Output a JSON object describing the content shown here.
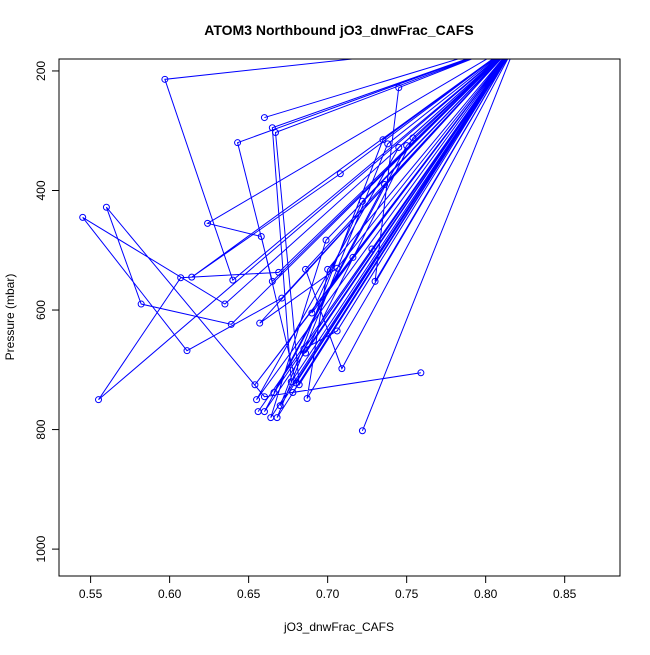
{
  "chart_data": {
    "type": "line",
    "title": "ATOM3 Northbound jO3_dnwFrac_CAFS",
    "xlabel": "jO3_dnwFrac_CAFS",
    "ylabel": "Pressure (mbar)",
    "xlim": [
      0.53,
      0.885
    ],
    "ylim": [
      1045,
      180
    ],
    "y_reversed": true,
    "x_ticks": [
      0.55,
      0.6,
      0.65,
      0.7,
      0.75,
      0.8,
      0.85
    ],
    "x_tick_labels": [
      "0.55",
      "0.60",
      "0.65",
      "0.70",
      "0.75",
      "0.80",
      "0.85"
    ],
    "y_ticks": [
      200,
      400,
      600,
      800,
      1000
    ],
    "y_tick_labels": [
      "200",
      "400",
      "600",
      "800",
      "1000"
    ],
    "grid": false,
    "line_color": "#0000ff",
    "marker": "open-circle",
    "series": [
      {
        "points": [
          [
            0.82,
            150
          ],
          [
            0.597,
            214
          ],
          [
            0.64,
            550
          ],
          [
            0.82,
            150
          ],
          [
            0.66,
            278
          ],
          [
            0.82,
            150
          ],
          [
            0.643,
            320
          ],
          [
            0.665,
            552
          ],
          [
            0.82,
            150
          ],
          [
            0.665,
            295
          ],
          [
            0.677,
            720
          ],
          [
            0.82,
            150
          ],
          [
            0.667,
            303
          ],
          [
            0.682,
            725
          ],
          [
            0.82,
            150
          ],
          [
            0.745,
            228
          ],
          [
            0.73,
            552
          ],
          [
            0.82,
            150
          ],
          [
            0.754,
            312
          ],
          [
            0.686,
            672
          ],
          [
            0.82,
            150
          ],
          [
            0.735,
            315
          ],
          [
            0.67,
            760
          ],
          [
            0.82,
            150
          ],
          [
            0.738,
            322
          ],
          [
            0.668,
            780
          ],
          [
            0.82,
            150
          ],
          [
            0.75,
            325
          ],
          [
            0.66,
            770
          ],
          [
            0.82,
            150
          ],
          [
            0.745,
            328
          ],
          [
            0.655,
            750
          ],
          [
            0.82,
            150
          ],
          [
            0.736,
            390
          ],
          [
            0.666,
            738
          ],
          [
            0.82,
            150
          ],
          [
            0.708,
            372
          ],
          [
            0.614,
            545
          ],
          [
            0.82,
            150
          ],
          [
            0.624,
            455
          ],
          [
            0.658,
            477
          ],
          [
            0.68,
            722
          ],
          [
            0.82,
            150
          ],
          [
            0.722,
            418
          ],
          [
            0.69,
            605
          ],
          [
            0.82,
            150
          ],
          [
            0.699,
            483
          ],
          [
            0.664,
            780
          ],
          [
            0.82,
            150
          ],
          [
            0.716,
            512
          ],
          [
            0.654,
            725
          ],
          [
            0.82,
            150
          ],
          [
            0.728,
            498
          ],
          [
            0.656,
            770
          ],
          [
            0.82,
            150
          ],
          [
            0.686,
            532
          ],
          [
            0.709,
            698
          ],
          [
            0.82,
            150
          ],
          [
            0.706,
            530
          ],
          [
            0.657,
            622
          ],
          [
            0.82,
            150
          ],
          [
            0.7,
            532
          ],
          [
            0.687,
            748
          ],
          [
            0.82,
            150
          ],
          [
            0.722,
            802
          ],
          [
            0.82,
            150
          ],
          [
            0.706,
            635
          ],
          [
            0.685,
            665
          ],
          [
            0.82,
            150
          ],
          [
            0.669,
            537
          ],
          [
            0.607,
            546
          ],
          [
            0.555,
            750
          ],
          [
            0.82,
            150
          ],
          [
            0.671,
            580
          ],
          [
            0.611,
            668
          ],
          [
            0.545,
            445
          ],
          [
            0.635,
            590
          ],
          [
            0.82,
            150
          ],
          [
            0.639,
            624
          ],
          [
            0.582,
            590
          ],
          [
            0.56,
            428
          ],
          [
            0.66,
            745
          ],
          [
            0.759,
            705
          ],
          [
            0.678,
            738
          ],
          [
            0.82,
            150
          ]
        ]
      }
    ]
  }
}
